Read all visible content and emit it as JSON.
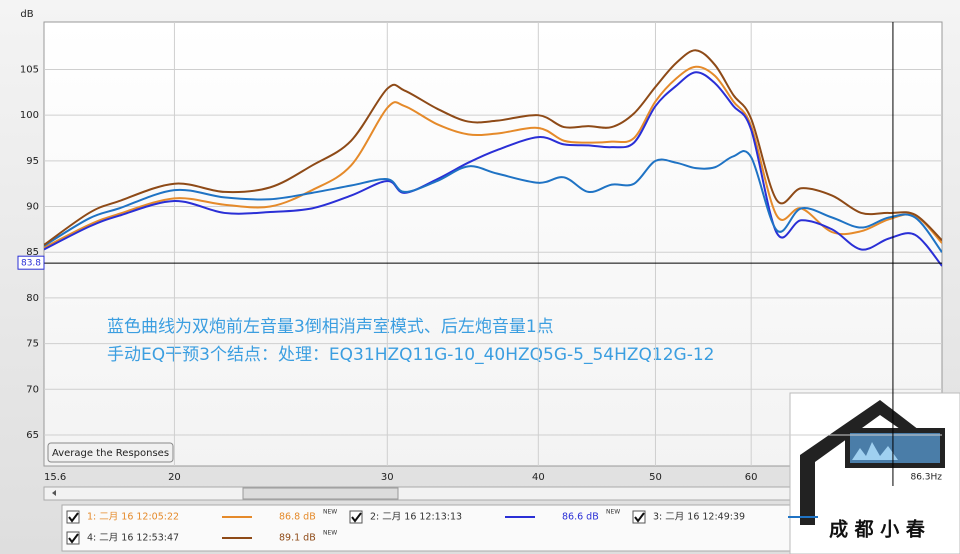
{
  "chart_data": {
    "type": "line",
    "y_label": "dB",
    "log_x": true,
    "grid": true,
    "xlim": [
      15.6,
      86.3
    ],
    "ylim": [
      61.6,
      110.2
    ],
    "xticks": [
      15.6,
      20,
      30,
      40,
      50,
      60,
      {
        "value": 86.3,
        "label": "86.3Hz"
      }
    ],
    "yticks": [
      65,
      70,
      75,
      80,
      85,
      90,
      95,
      100,
      105
    ],
    "cursor": {
      "x": 78.6,
      "y": 83.8
    },
    "annotation": [
      "蓝色曲线为双炮前左音量3倒相消声室模式、后左炮音量1点",
      "手动EQ干预3个结点：处理：EQ31HZQ11G-10_40HZQ5G-5_54HZQ12G-12"
    ],
    "button": "Average the Responses",
    "x": [
      15.6,
      17,
      18,
      20,
      22,
      24,
      26,
      28,
      30,
      31,
      33,
      35,
      37,
      40,
      42,
      44,
      46,
      48,
      50,
      52,
      54,
      56,
      58,
      60,
      63,
      66,
      70,
      74,
      78,
      82,
      86.3
    ],
    "series": [
      {
        "name": "1: 二月 16 12:05:22",
        "color": "#e58a2a",
        "level": "86.8 dB",
        "badge": "NEW",
        "values": [
          85.5,
          88,
          89.2,
          90.9,
          90.2,
          90,
          91.8,
          94.5,
          100.8,
          101,
          99,
          97.9,
          98,
          98.6,
          97.2,
          97,
          97.1,
          97.5,
          101.5,
          104,
          105.3,
          104.3,
          101.5,
          98.8,
          89,
          89.8,
          87.2,
          87.3,
          88.6,
          89,
          86
        ]
      },
      {
        "name": "2: 二月 16 12:13:13",
        "color": "#2a2fd6",
        "level": "86.6 dB",
        "badge": "NEW",
        "values": [
          85.3,
          87.8,
          89,
          90.6,
          89.3,
          89.4,
          89.8,
          91.2,
          92.8,
          91.5,
          93,
          94.8,
          96.2,
          97.6,
          96.8,
          96.7,
          96.5,
          97,
          101,
          103.2,
          104.7,
          103.5,
          101,
          98.4,
          87.1,
          88.5,
          87.5,
          85.3,
          86.5,
          86.9,
          83.5
        ]
      },
      {
        "name": "3: 二月 16 12:49:39",
        "color": "#1f73c4",
        "values": [
          85.7,
          88.7,
          89.8,
          91.8,
          91,
          90.8,
          91.5,
          92.3,
          93,
          91.6,
          92.8,
          94.4,
          93.6,
          92.6,
          93.2,
          91.6,
          92.4,
          92.5,
          95,
          94.8,
          94.2,
          94.3,
          95.5,
          95.4,
          87.4,
          89.8,
          88.8,
          87.7,
          88.8,
          88.8,
          85
        ]
      },
      {
        "name": "4: 二月 16 12:53:47",
        "color": "#8e4a17",
        "level": "89.1 dB",
        "badge": "NEW",
        "values": [
          85.8,
          89.3,
          90.6,
          92.5,
          91.6,
          92.1,
          94.5,
          97.2,
          102.9,
          102.7,
          100.7,
          99.3,
          99.4,
          100,
          98.7,
          98.8,
          98.7,
          100.2,
          103.1,
          105.7,
          107.1,
          105.5,
          102.2,
          99.6,
          90.7,
          92,
          91.2,
          89.3,
          89.3,
          89.1,
          86.3
        ]
      }
    ],
    "logo": "成 都 小 春"
  }
}
